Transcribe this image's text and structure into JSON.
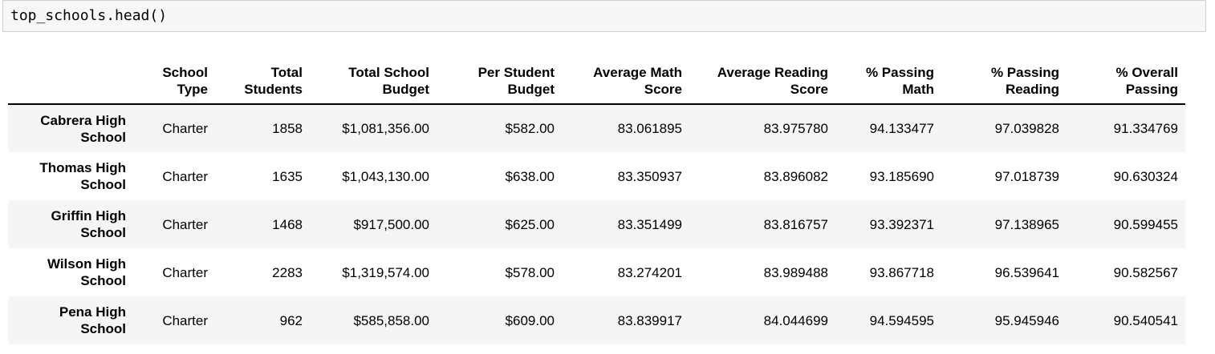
{
  "cell": {
    "code": "top_schools.head()"
  },
  "table": {
    "columns": [
      "",
      "School Type",
      "Total Students",
      "Total School Budget",
      "Per Student Budget",
      "Average Math Score",
      "Average Reading Score",
      "% Passing Math",
      "% Passing Reading",
      "% Overall Passing"
    ],
    "header_lines": [
      [
        "",
        ""
      ],
      [
        "School",
        "Type"
      ],
      [
        "Total",
        "Students"
      ],
      [
        "Total School",
        "Budget"
      ],
      [
        "Per Student",
        "Budget"
      ],
      [
        "Average Math",
        "Score"
      ],
      [
        "Average Reading",
        "Score"
      ],
      [
        "% Passing",
        "Math"
      ],
      [
        "% Passing",
        "Reading"
      ],
      [
        "% Overall",
        "Passing"
      ]
    ],
    "rows": [
      {
        "index_lines": [
          "Cabrera High",
          "School"
        ],
        "cells": [
          "Charter",
          "1858",
          "$1,081,356.00",
          "$582.00",
          "83.061895",
          "83.975780",
          "94.133477",
          "97.039828",
          "91.334769"
        ]
      },
      {
        "index_lines": [
          "Thomas High",
          "School"
        ],
        "cells": [
          "Charter",
          "1635",
          "$1,043,130.00",
          "$638.00",
          "83.350937",
          "83.896082",
          "93.185690",
          "97.018739",
          "90.630324"
        ]
      },
      {
        "index_lines": [
          "Griffin High",
          "School"
        ],
        "cells": [
          "Charter",
          "1468",
          "$917,500.00",
          "$625.00",
          "83.351499",
          "83.816757",
          "93.392371",
          "97.138965",
          "90.599455"
        ]
      },
      {
        "index_lines": [
          "Wilson High",
          "School"
        ],
        "cells": [
          "Charter",
          "2283",
          "$1,319,574.00",
          "$578.00",
          "83.274201",
          "83.989488",
          "93.867718",
          "96.539641",
          "90.582567"
        ]
      },
      {
        "index_lines": [
          "Pena High",
          "School"
        ],
        "cells": [
          "Charter",
          "962",
          "$585,858.00",
          "$609.00",
          "83.839917",
          "84.044699",
          "94.594595",
          "95.945946",
          "90.540541"
        ]
      }
    ]
  }
}
